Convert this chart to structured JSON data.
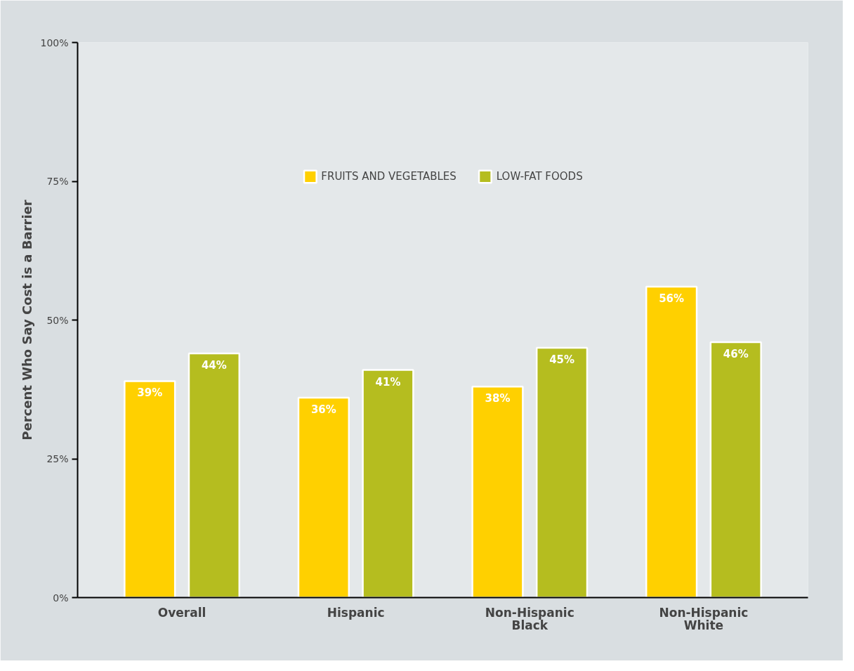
{
  "chart_data": {
    "type": "bar",
    "ylabel": "Percent Who Say Cost is a Barrier",
    "categories": [
      "Overall",
      "Hispanic",
      "Non-Hispanic Black",
      "Non-Hispanic White"
    ],
    "series": [
      {
        "name": "FRUITS AND VEGETABLES",
        "color": "#ffd000",
        "values": [
          39,
          36,
          38,
          56
        ],
        "value_labels": [
          "39%",
          "36%",
          "38%",
          "56%"
        ]
      },
      {
        "name": "LOW-FAT FOODS",
        "color": "#b5bd1f",
        "values": [
          44,
          41,
          45,
          46
        ],
        "value_labels": [
          "44%",
          "41%",
          "45%",
          "46%"
        ]
      }
    ],
    "ylim": [
      0,
      100
    ],
    "yticks": [
      {
        "value": 0,
        "label": "0%"
      },
      {
        "value": 25,
        "label": "25%"
      },
      {
        "value": 50,
        "label": "50%"
      },
      {
        "value": 75,
        "label": "75%"
      },
      {
        "value": 100,
        "label": "100%"
      }
    ],
    "legend": "top"
  }
}
